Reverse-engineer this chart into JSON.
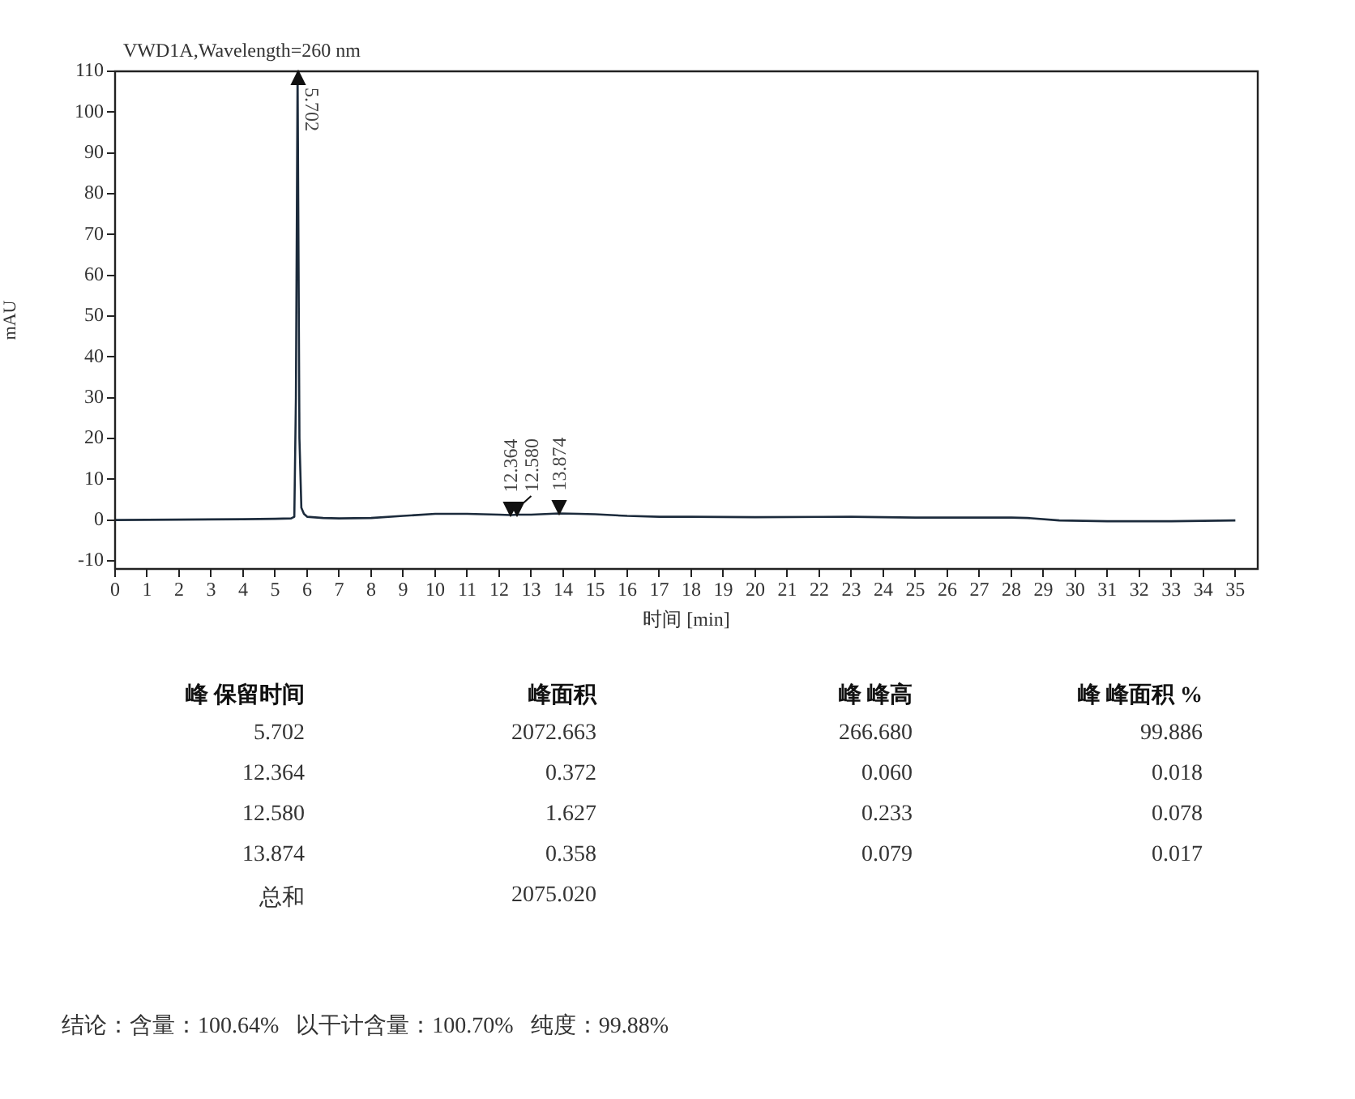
{
  "chart_data": {
    "type": "line",
    "title": "VWD1A,Wavelength=260 nm",
    "xlabel": "时间 [min]",
    "ylabel": "mAU",
    "xlim": [
      0,
      35.7
    ],
    "xticks": [
      0,
      1,
      2,
      3,
      4,
      5,
      6,
      7,
      8,
      9,
      10,
      11,
      12,
      13,
      14,
      15,
      16,
      17,
      18,
      19,
      20,
      21,
      22,
      23,
      24,
      25,
      26,
      27,
      28,
      29,
      30,
      31,
      32,
      33,
      34,
      35
    ],
    "ylim": [
      -12,
      110
    ],
    "yticks": [
      -10,
      0,
      10,
      20,
      30,
      40,
      50,
      60,
      70,
      80,
      90,
      100,
      110
    ],
    "legend": false,
    "marker": "none",
    "line_style": "solid",
    "series": [
      {
        "color": "#1c2b3c",
        "x": [
          0,
          2,
          4,
          5,
          5.5,
          5.6,
          5.65,
          5.702,
          5.76,
          5.82,
          5.9,
          6,
          6.5,
          7,
          8,
          9,
          10,
          11,
          12,
          12.364,
          12.58,
          13,
          13.874,
          14.5,
          15,
          16,
          17,
          18,
          20,
          23,
          25,
          28,
          28.5,
          29.5,
          31,
          33,
          35
        ],
        "values": [
          0,
          0.1,
          0.2,
          0.3,
          0.4,
          0.8,
          30,
          110,
          20,
          3,
          1.5,
          0.8,
          0.5,
          0.4,
          0.5,
          1,
          1.5,
          1.5,
          1.3,
          1.2,
          1.3,
          1.3,
          1.6,
          1.5,
          1.4,
          1,
          0.8,
          0.8,
          0.7,
          0.8,
          0.6,
          0.6,
          0.5,
          -0.1,
          -0.3,
          -0.3,
          -0.1
        ]
      }
    ],
    "annotations": [
      {
        "text": "5.702",
        "x": 5.702,
        "y": 110
      },
      {
        "text": "12.364",
        "x": 12.364,
        "y": 1.2
      },
      {
        "text": "12.580",
        "x": 12.58,
        "y": 1.3
      },
      {
        "text": "13.874",
        "x": 13.874,
        "y": 1.6
      },
      "峰 保留时间",
      "峰面积",
      "峰 峰高",
      "峰 峰面积 %",
      "5.702",
      "2072.663",
      "266.680",
      "99.886",
      "12.364",
      "0.372",
      "0.060",
      "0.018",
      "12.580",
      "1.627",
      "0.233",
      "0.078",
      "13.874",
      "0.358",
      "0.079",
      "0.017",
      "总和",
      "2075.020",
      "结论：含量：100.64%   以干计含量：100.70%   纯度：99.88%"
    ]
  }
}
